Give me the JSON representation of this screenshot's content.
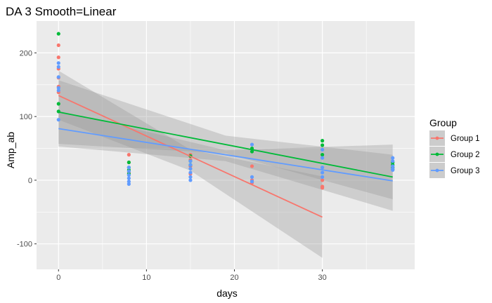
{
  "chart_data": {
    "type": "scatter",
    "title": "DA 3 Smooth=Linear",
    "xlabel": "days",
    "ylabel": "Amp_ab",
    "xlim": [
      -2.5,
      40.5
    ],
    "ylim": [
      -140,
      250
    ],
    "x_ticks": [
      0,
      10,
      20,
      30
    ],
    "y_ticks": [
      -100,
      0,
      100,
      200
    ],
    "grid": true,
    "background": "#ebebeb",
    "legend": {
      "title": "Group",
      "position": "right"
    },
    "series": [
      {
        "name": "Group 1",
        "color": "#F8766D",
        "points": [
          [
            0,
            212
          ],
          [
            0,
            193
          ],
          [
            0,
            175
          ],
          [
            0,
            161
          ],
          [
            0,
            147
          ],
          [
            0,
            138
          ],
          [
            8,
            40
          ],
          [
            8,
            28
          ],
          [
            8,
            12
          ],
          [
            15,
            40
          ],
          [
            15,
            32
          ],
          [
            15,
            22
          ],
          [
            15,
            10
          ],
          [
            22,
            22
          ],
          [
            22,
            0
          ],
          [
            22,
            -4
          ],
          [
            30,
            0
          ],
          [
            30,
            -10
          ],
          [
            30,
            -12
          ]
        ],
        "fit": {
          "x": [
            0,
            30
          ],
          "y": [
            133,
            -58
          ]
        },
        "ribbon": {
          "x": [
            0,
            15,
            30
          ],
          "lower": [
            95,
            15,
            -122
          ],
          "upper": [
            172,
            48,
            6
          ]
        }
      },
      {
        "name": "Group 2",
        "color": "#00BA38",
        "points": [
          [
            0,
            230
          ],
          [
            0,
            120
          ],
          [
            0,
            108
          ],
          [
            8,
            28
          ],
          [
            8,
            20
          ],
          [
            8,
            16
          ],
          [
            8,
            10
          ],
          [
            15,
            38
          ],
          [
            15,
            30
          ],
          [
            15,
            24
          ],
          [
            22,
            50
          ],
          [
            22,
            45
          ],
          [
            30,
            62
          ],
          [
            30,
            55
          ],
          [
            30,
            40
          ],
          [
            38,
            28
          ],
          [
            38,
            24
          ],
          [
            38,
            20
          ],
          [
            38,
            17
          ]
        ],
        "fit": {
          "x": [
            0,
            38
          ],
          "y": [
            107,
            5
          ]
        },
        "ribbon": {
          "x": [
            0,
            19,
            38
          ],
          "lower": [
            57,
            42,
            -30
          ],
          "upper": [
            157,
            70,
            40
          ]
        }
      },
      {
        "name": "Group 3",
        "color": "#619CFF",
        "points": [
          [
            0,
            184
          ],
          [
            0,
            178
          ],
          [
            0,
            162
          ],
          [
            0,
            145
          ],
          [
            0,
            141
          ],
          [
            0,
            95
          ],
          [
            8,
            20
          ],
          [
            8,
            14
          ],
          [
            8,
            8
          ],
          [
            8,
            3
          ],
          [
            8,
            -2
          ],
          [
            8,
            -6
          ],
          [
            15,
            30
          ],
          [
            15,
            24
          ],
          [
            15,
            18
          ],
          [
            15,
            12
          ],
          [
            15,
            5
          ],
          [
            15,
            0
          ],
          [
            22,
            56
          ],
          [
            22,
            5
          ],
          [
            22,
            -2
          ],
          [
            30,
            48
          ],
          [
            30,
            35
          ],
          [
            30,
            20
          ],
          [
            30,
            12
          ],
          [
            30,
            5
          ],
          [
            38,
            35
          ],
          [
            38,
            30
          ],
          [
            38,
            22
          ],
          [
            38,
            18
          ],
          [
            38,
            16
          ]
        ],
        "fit": {
          "x": [
            0,
            38
          ],
          "y": [
            81,
            -1
          ]
        },
        "ribbon": {
          "x": [
            0,
            19,
            38
          ],
          "lower": [
            53,
            30,
            -48
          ],
          "upper": [
            109,
            47,
            56
          ]
        }
      }
    ]
  }
}
